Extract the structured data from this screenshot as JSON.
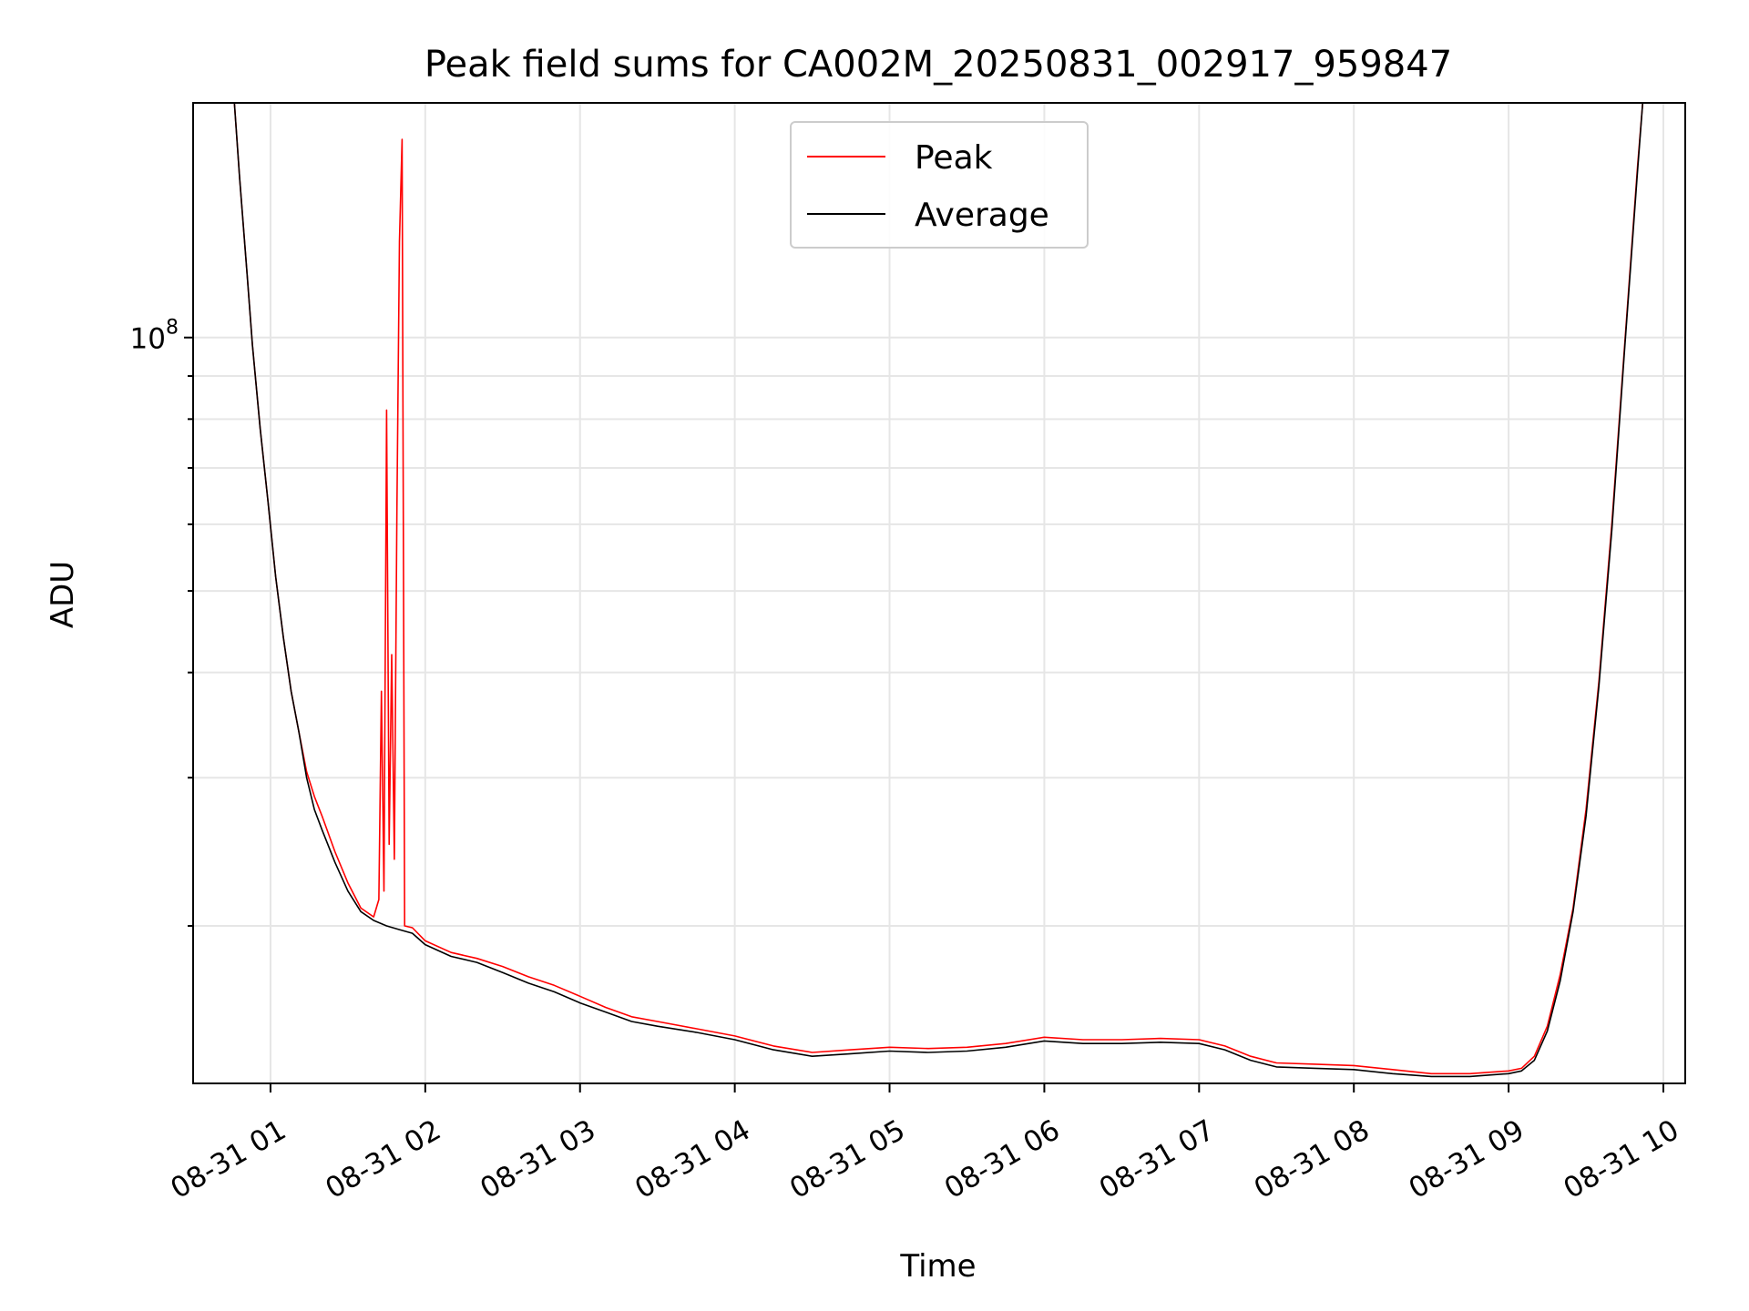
{
  "chart_data": {
    "type": "line",
    "title": "Peak field sums for CA002M_20250831_002917_959847",
    "xlabel": "Time",
    "ylabel": "ADU",
    "x_axis": {
      "type": "time",
      "range": [
        "2025-08-31 00:30",
        "2025-08-31 10:00"
      ],
      "ticks": [
        {
          "value": "2025-08-31 01:00",
          "label": "08-31 01"
        },
        {
          "value": "2025-08-31 02:00",
          "label": "08-31 02"
        },
        {
          "value": "2025-08-31 03:00",
          "label": "08-31 03"
        },
        {
          "value": "2025-08-31 04:00",
          "label": "08-31 04"
        },
        {
          "value": "2025-08-31 05:00",
          "label": "08-31 05"
        },
        {
          "value": "2025-08-31 06:00",
          "label": "08-31 06"
        },
        {
          "value": "2025-08-31 07:00",
          "label": "08-31 07"
        },
        {
          "value": "2025-08-31 08:00",
          "label": "08-31 08"
        },
        {
          "value": "2025-08-31 09:00",
          "label": "08-31 09"
        },
        {
          "value": "2025-08-31 10:00",
          "label": "08-31 10"
        }
      ]
    },
    "y_axis": {
      "scale": "log",
      "range": [
        13000000,
        190000000
      ],
      "major_ticks": [
        {
          "value": 100000000,
          "label_base": "10",
          "label_exp": "8"
        }
      ],
      "minor_ticks": [
        20000000,
        30000000,
        40000000,
        50000000,
        60000000,
        70000000,
        80000000,
        90000000,
        200000000
      ]
    },
    "grid": true,
    "legend_position": "upper center",
    "series": [
      {
        "name": "Peak",
        "color": "#ff0000",
        "points": [
          [
            "00:46",
            190000000
          ],
          [
            "00:48",
            155000000
          ],
          [
            "00:51",
            118000000
          ],
          [
            "00:53",
            98000000
          ],
          [
            "00:56",
            78000000
          ],
          [
            "00:59",
            64000000
          ],
          [
            "01:02",
            52000000
          ],
          [
            "01:05",
            44000000
          ],
          [
            "01:08",
            38000000
          ],
          [
            "01:11",
            34000000
          ],
          [
            "01:14",
            30500000
          ],
          [
            "01:17",
            28500000
          ],
          [
            "01:20",
            27000000
          ],
          [
            "01:25",
            24500000
          ],
          [
            "01:30",
            22500000
          ],
          [
            "01:35",
            21000000
          ],
          [
            "01:40",
            20500000
          ],
          [
            "01:42",
            21500000
          ],
          [
            "01:43",
            38000000
          ],
          [
            "01:44",
            22000000
          ],
          [
            "01:45",
            82000000
          ],
          [
            "01:46",
            25000000
          ],
          [
            "01:47",
            42000000
          ],
          [
            "01:48",
            24000000
          ],
          [
            "01:49",
            62000000
          ],
          [
            "01:50",
            130000000
          ],
          [
            "01:51",
            172000000
          ],
          [
            "01:52",
            20000000
          ],
          [
            "01:55",
            19900000
          ],
          [
            "02:00",
            19200000
          ],
          [
            "02:10",
            18600000
          ],
          [
            "02:20",
            18300000
          ],
          [
            "02:30",
            17900000
          ],
          [
            "02:40",
            17400000
          ],
          [
            "02:50",
            17000000
          ],
          [
            "03:00",
            16500000
          ],
          [
            "03:10",
            16000000
          ],
          [
            "03:20",
            15600000
          ],
          [
            "03:30",
            15400000
          ],
          [
            "03:45",
            15100000
          ],
          [
            "04:00",
            14800000
          ],
          [
            "04:15",
            14400000
          ],
          [
            "04:30",
            14150000
          ],
          [
            "04:45",
            14250000
          ],
          [
            "05:00",
            14350000
          ],
          [
            "05:15",
            14300000
          ],
          [
            "05:30",
            14350000
          ],
          [
            "05:45",
            14500000
          ],
          [
            "06:00",
            14750000
          ],
          [
            "06:15",
            14650000
          ],
          [
            "06:30",
            14650000
          ],
          [
            "06:45",
            14700000
          ],
          [
            "07:00",
            14650000
          ],
          [
            "07:10",
            14400000
          ],
          [
            "07:20",
            14000000
          ],
          [
            "07:30",
            13750000
          ],
          [
            "07:45",
            13700000
          ],
          [
            "08:00",
            13650000
          ],
          [
            "08:15",
            13500000
          ],
          [
            "08:30",
            13350000
          ],
          [
            "08:45",
            13350000
          ],
          [
            "09:00",
            13450000
          ],
          [
            "09:05",
            13550000
          ],
          [
            "09:10",
            14000000
          ],
          [
            "09:15",
            15200000
          ],
          [
            "09:20",
            17500000
          ],
          [
            "09:25",
            21000000
          ],
          [
            "09:30",
            27500000
          ],
          [
            "09:35",
            39000000
          ],
          [
            "09:40",
            60000000
          ],
          [
            "09:45",
            98000000
          ],
          [
            "09:50",
            160000000
          ],
          [
            "09:52",
            190000000
          ]
        ]
      },
      {
        "name": "Average",
        "color": "#000000",
        "points": [
          [
            "00:46",
            190000000
          ],
          [
            "00:48",
            155000000
          ],
          [
            "00:51",
            118000000
          ],
          [
            "00:53",
            98000000
          ],
          [
            "00:56",
            78000000
          ],
          [
            "00:59",
            64000000
          ],
          [
            "01:02",
            52000000
          ],
          [
            "01:05",
            44000000
          ],
          [
            "01:08",
            38000000
          ],
          [
            "01:11",
            34000000
          ],
          [
            "01:14",
            30000000
          ],
          [
            "01:17",
            27500000
          ],
          [
            "01:20",
            26000000
          ],
          [
            "01:25",
            23800000
          ],
          [
            "01:30",
            22000000
          ],
          [
            "01:35",
            20800000
          ],
          [
            "01:40",
            20300000
          ],
          [
            "01:45",
            20000000
          ],
          [
            "01:50",
            19800000
          ],
          [
            "01:55",
            19600000
          ],
          [
            "02:00",
            19000000
          ],
          [
            "02:10",
            18400000
          ],
          [
            "02:20",
            18100000
          ],
          [
            "02:30",
            17600000
          ],
          [
            "02:40",
            17100000
          ],
          [
            "02:50",
            16700000
          ],
          [
            "03:00",
            16200000
          ],
          [
            "03:10",
            15800000
          ],
          [
            "03:20",
            15400000
          ],
          [
            "03:30",
            15200000
          ],
          [
            "03:45",
            14950000
          ],
          [
            "04:00",
            14650000
          ],
          [
            "04:15",
            14250000
          ],
          [
            "04:30",
            14000000
          ],
          [
            "04:45",
            14100000
          ],
          [
            "05:00",
            14200000
          ],
          [
            "05:15",
            14150000
          ],
          [
            "05:30",
            14200000
          ],
          [
            "05:45",
            14350000
          ],
          [
            "06:00",
            14600000
          ],
          [
            "06:15",
            14500000
          ],
          [
            "06:30",
            14500000
          ],
          [
            "06:45",
            14550000
          ],
          [
            "07:00",
            14500000
          ],
          [
            "07:10",
            14250000
          ],
          [
            "07:20",
            13850000
          ],
          [
            "07:30",
            13600000
          ],
          [
            "07:45",
            13550000
          ],
          [
            "08:00",
            13500000
          ],
          [
            "08:15",
            13350000
          ],
          [
            "08:30",
            13250000
          ],
          [
            "08:45",
            13250000
          ],
          [
            "09:00",
            13350000
          ],
          [
            "09:05",
            13450000
          ],
          [
            "09:10",
            13850000
          ],
          [
            "09:15",
            15000000
          ],
          [
            "09:20",
            17200000
          ],
          [
            "09:25",
            20800000
          ],
          [
            "09:30",
            27000000
          ],
          [
            "09:35",
            38500000
          ],
          [
            "09:40",
            59000000
          ],
          [
            "09:45",
            97000000
          ],
          [
            "09:50",
            158000000
          ],
          [
            "09:52",
            190000000
          ]
        ]
      }
    ]
  }
}
